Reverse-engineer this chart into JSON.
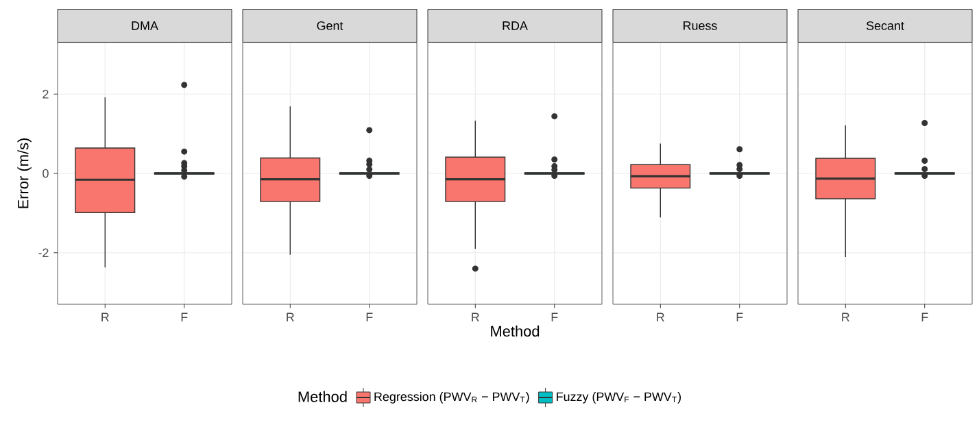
{
  "chart_data": [
    {
      "type": "box",
      "title": "DMA",
      "ylabel": "Error (m/s)",
      "categories": [
        "R",
        "F"
      ],
      "ylim": [
        -3.3,
        3.3
      ],
      "yticks": [
        -2,
        0,
        2
      ],
      "grid": true,
      "legend": "bottom",
      "legend_title": "Method",
      "series": [
        {
          "name": "Regression (PWV$_{R}$ − PWV$_{T}$)",
          "color": "#f8766d",
          "boxes": [
            {
              "low": -2.37,
              "q1": -0.99,
              "median": -0.16,
              "q3": 0.64,
              "high": 1.92
            },
            null
          ]
        },
        {
          "name": "Fuzzy (PWV$_{F}$ − PWV$_{T}$)",
          "color": "#00bfc4",
          "boxes": [
            null,
            {
              "low": -0.03,
              "q1": -0.02,
              "median": 0,
              "q3": 0.02,
              "high": 0.03,
              "outliers": [
                2.23,
                0.55,
                0.26,
                0.18,
                0.08,
                -0.08
              ]
            }
          ]
        }
      ]
    },
    {
      "type": "box",
      "title": "Gent",
      "categories": [
        "R",
        "F"
      ],
      "ylim": [
        -3.3,
        3.3
      ],
      "yticks": [
        -2,
        0,
        2
      ],
      "grid": true,
      "tick_labels": "x",
      "series": [
        {
          "color": "#f8766d",
          "boxes": [
            {
              "low": -2.05,
              "q1": -0.71,
              "median": -0.15,
              "q3": 0.39,
              "high": 1.69
            },
            null
          ]
        },
        {
          "color": "#00bfc4",
          "boxes": [
            null,
            {
              "low": -0.03,
              "q1": -0.02,
              "median": 0,
              "q3": 0.02,
              "high": 0.03,
              "outliers": [
                1.09,
                0.32,
                0.23,
                0.1,
                -0.06
              ]
            }
          ]
        }
      ]
    },
    {
      "type": "box",
      "title": "RDA",
      "xlabel": "Method",
      "categories": [
        "R",
        "F"
      ],
      "ylim": [
        -3.3,
        3.3
      ],
      "yticks": [
        -2,
        0,
        2
      ],
      "grid": true,
      "tick_labels": "x",
      "series": [
        {
          "color": "#f8766d",
          "boxes": [
            {
              "low": -1.9,
              "q1": -0.71,
              "median": -0.15,
              "q3": 0.41,
              "high": 1.33,
              "outliers": [
                -2.4
              ]
            },
            null
          ]
        },
        {
          "color": "#00bfc4",
          "boxes": [
            null,
            {
              "low": -0.03,
              "q1": -0.02,
              "median": 0,
              "q3": 0.02,
              "high": 0.03,
              "outliers": [
                1.44,
                0.35,
                0.18,
                0.09,
                -0.06
              ]
            }
          ]
        }
      ]
    },
    {
      "type": "box",
      "title": "Ruess",
      "categories": [
        "R",
        "F"
      ],
      "ylim": [
        -3.3,
        3.3
      ],
      "yticks": [
        -2,
        0,
        2
      ],
      "grid": true,
      "tick_labels": "x",
      "series": [
        {
          "color": "#f8766d",
          "boxes": [
            {
              "low": -1.11,
              "q1": -0.37,
              "median": -0.07,
              "q3": 0.22,
              "high": 0.75
            },
            null
          ]
        },
        {
          "color": "#00bfc4",
          "boxes": [
            null,
            {
              "low": -0.03,
              "q1": -0.02,
              "median": 0,
              "q3": 0.02,
              "high": 0.03,
              "outliers": [
                0.61,
                0.21,
                0.11,
                -0.06
              ]
            }
          ]
        }
      ]
    },
    {
      "type": "box",
      "title": "Secant",
      "categories": [
        "R",
        "F"
      ],
      "ylim": [
        -3.3,
        3.3
      ],
      "yticks": [
        -2,
        0,
        2
      ],
      "grid": true,
      "tick_labels": "x",
      "series": [
        {
          "color": "#f8766d",
          "boxes": [
            {
              "low": -2.11,
              "q1": -0.64,
              "median": -0.13,
              "q3": 0.38,
              "high": 1.21
            },
            null
          ]
        },
        {
          "color": "#00bfc4",
          "boxes": [
            null,
            {
              "low": -0.03,
              "q1": -0.02,
              "median": 0,
              "q3": 0.02,
              "high": 0.03,
              "outliers": [
                1.27,
                0.32,
                0.11,
                -0.06
              ]
            }
          ]
        }
      ]
    }
  ]
}
